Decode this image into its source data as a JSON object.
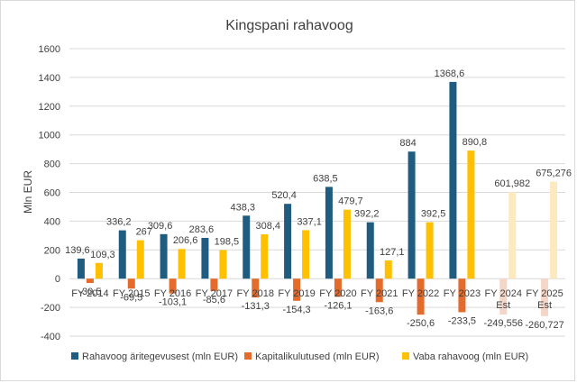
{
  "chart_data": {
    "type": "bar",
    "title": "Kingspani rahavoog",
    "ylabel": "Mln EUR",
    "xlabel": "",
    "ylim": [
      -400,
      1600
    ],
    "yticks": [
      -400,
      -200,
      0,
      200,
      400,
      600,
      800,
      1000,
      1200,
      1400,
      1600
    ],
    "grid": true,
    "legend_position": "bottom",
    "categories": [
      [
        "FY 2014"
      ],
      [
        "FY 2015"
      ],
      [
        "FY 2016"
      ],
      [
        "FY 2017"
      ],
      [
        "FY 2018"
      ],
      [
        "FY 2019"
      ],
      [
        "FY 2020"
      ],
      [
        "FY 2021"
      ],
      [
        "FY 2022"
      ],
      [
        "FY 2023"
      ],
      [
        "FY 2024",
        "Est"
      ],
      [
        "FY 2025",
        "Est"
      ]
    ],
    "estimated_from_index": 10,
    "series": [
      {
        "name": "Rahavoog äritegevusest (mln EUR)",
        "color": "#1f5c7f",
        "values": [
          139.6,
          336.2,
          309.6,
          283.6,
          438.3,
          520.4,
          638.5,
          392.2,
          884,
          1368.6,
          null,
          null
        ],
        "labels": [
          "139,6",
          "336,2",
          "309,6",
          "283,6",
          "438,3",
          "520,4",
          "638,5",
          "392,2",
          "884",
          "1368,6",
          "",
          ""
        ]
      },
      {
        "name": "Kapitalikulutused (mln EUR)",
        "color": "#e36c2d",
        "estimated_color": "#f3d6c8",
        "values": [
          -30.5,
          -69.5,
          -103.1,
          -85.6,
          -131.3,
          -154.3,
          -126.1,
          -163.6,
          -250.6,
          -233.5,
          -249.556,
          -260.727
        ],
        "labels": [
          "-30,5",
          "-69,5",
          "-103,1",
          "-85,6",
          "-131,3",
          "-154,3",
          "-126,1",
          "-163,6",
          "-250,6",
          "-233,5",
          "-249,556",
          "-260,727"
        ]
      },
      {
        "name": "Vaba rahavoog (mln EUR)",
        "color": "#ffc000",
        "estimated_color": "#fde9c0",
        "values": [
          109.3,
          267,
          206.6,
          198.5,
          308.4,
          337.1,
          479.7,
          127.1,
          392.5,
          890.8,
          601.982,
          675.276
        ],
        "labels": [
          "109,3",
          "267",
          "206,6",
          "198,5",
          "308,4",
          "337,1",
          "479,7",
          "127,1",
          "392,5",
          "890,8",
          "601,982",
          "675,276"
        ]
      }
    ]
  }
}
